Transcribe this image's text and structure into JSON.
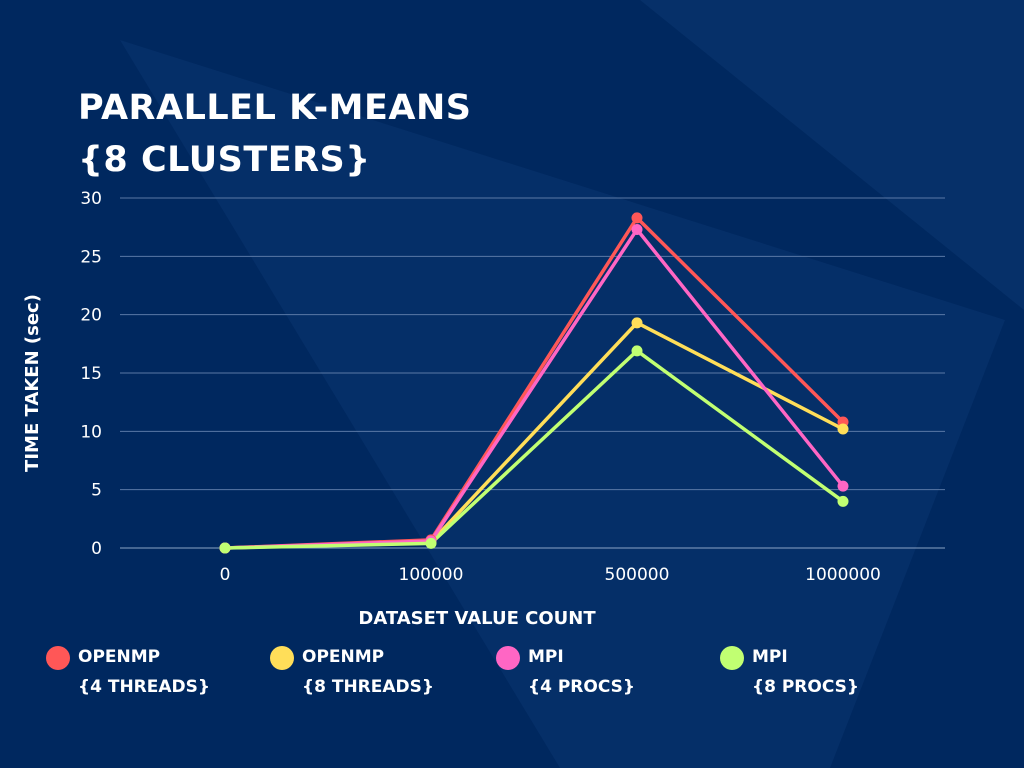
{
  "colors": {
    "background": "#00285f",
    "background_shape": "#0a3570",
    "grid": "#5a79a6",
    "openmp_4": "#ff5757",
    "openmp_8": "#ffde59",
    "mpi_4": "#ff66c4",
    "mpi_8": "#c1ff72"
  },
  "chart_data": {
    "type": "line",
    "title_lines": [
      "PARALLEL K-MEANS",
      "{8 CLUSTERS}"
    ],
    "xlabel": "DATASET VALUE COUNT",
    "ylabel": "TIME TAKEN (sec)",
    "categories": [
      "0",
      "100000",
      "500000",
      "1000000"
    ],
    "ylim": [
      0,
      30
    ],
    "yticks": [
      0,
      5,
      10,
      15,
      20,
      25,
      30
    ],
    "grid": true,
    "legend_position": "bottom",
    "series": [
      {
        "key": "openmp_4",
        "name_lines": [
          "OPENMP",
          "{4 THREADS}"
        ],
        "color": "#ff5757",
        "values": [
          0,
          0.7,
          28.3,
          10.8
        ]
      },
      {
        "key": "openmp_8",
        "name_lines": [
          "OPENMP",
          "{8 THREADS}"
        ],
        "color": "#ffde59",
        "values": [
          0,
          0.5,
          19.3,
          10.2
        ]
      },
      {
        "key": "mpi_4",
        "name_lines": [
          "MPI",
          "{4 PROCS}"
        ],
        "color": "#ff66c4",
        "values": [
          0,
          0.6,
          27.3,
          5.3
        ]
      },
      {
        "key": "mpi_8",
        "name_lines": [
          "MPI",
          "{8 PROCS}"
        ],
        "color": "#c1ff72",
        "values": [
          0,
          0.4,
          16.9,
          4.0
        ]
      }
    ]
  }
}
